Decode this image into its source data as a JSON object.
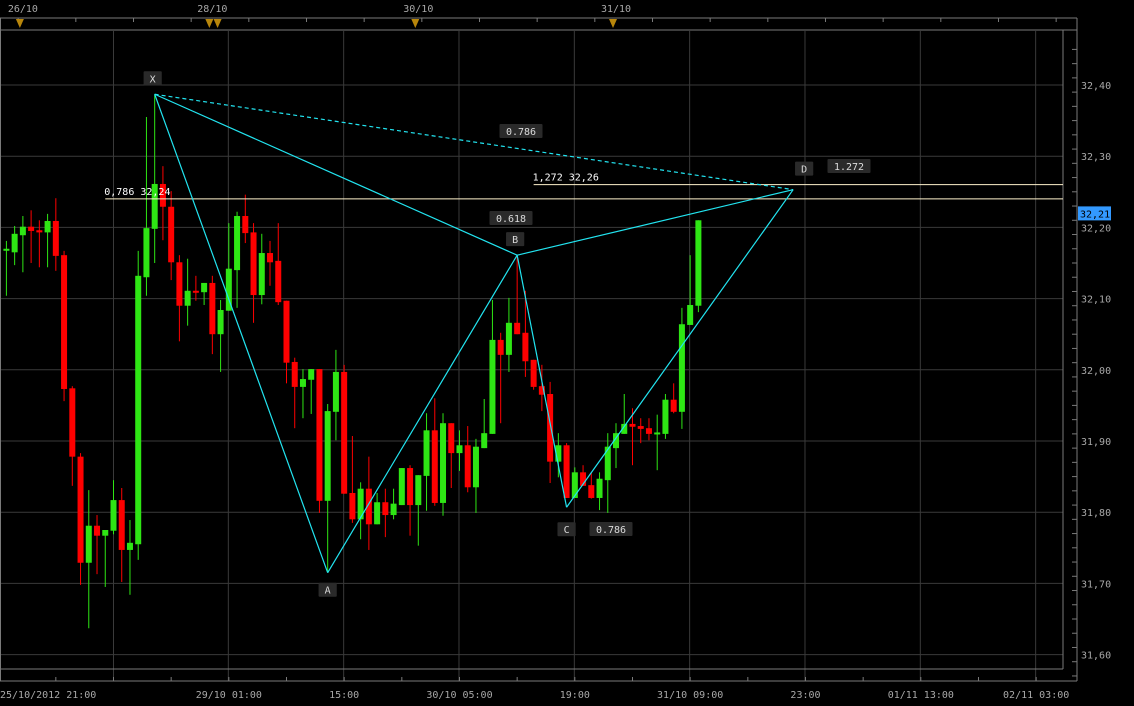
{
  "chart_data": {
    "type": "candlestick",
    "title": "",
    "ylim": [
      31.56,
      32.46
    ],
    "grid": true,
    "colors": {
      "up": "#2ee614",
      "down": "#ff0000",
      "pattern": "#22e4f0",
      "fib_line": "#fff3cc",
      "grid": "#3a3a3a",
      "axis": "#7a7a7a",
      "last_price_bg": "#3399ff"
    },
    "y_ticks": [
      {
        "value": 32.4,
        "label": "32,40"
      },
      {
        "value": 32.3,
        "label": "32,30"
      },
      {
        "value": 32.2,
        "label": "32,20"
      },
      {
        "value": 32.1,
        "label": "32,10"
      },
      {
        "value": 32.0,
        "label": "32,00"
      },
      {
        "value": 31.9,
        "label": "31,90"
      },
      {
        "value": 31.8,
        "label": "31,80"
      },
      {
        "value": 31.7,
        "label": "31,70"
      },
      {
        "value": 31.6,
        "label": "31,60"
      }
    ],
    "x_ticks": [
      {
        "index": -1,
        "label": "25/10/2012 21:00"
      },
      {
        "index": 27,
        "label": "29/10 01:00"
      },
      {
        "index": 41,
        "label": "15:00"
      },
      {
        "index": 55,
        "label": "30/10 05:00"
      },
      {
        "index": 69,
        "label": "19:00"
      },
      {
        "index": 83,
        "label": "31/10 09:00"
      },
      {
        "index": 97,
        "label": "23:00"
      },
      {
        "index": 111,
        "label": "01/11 13:00"
      },
      {
        "index": 125,
        "label": "02/11 03:00"
      }
    ],
    "top_dates": [
      {
        "index": 2,
        "label": "26/10"
      },
      {
        "index": 25,
        "label": "28/10"
      },
      {
        "index": 50,
        "label": "30/10"
      },
      {
        "index": 74,
        "label": "31/10"
      }
    ],
    "event_markers": [
      2,
      25,
      26,
      50,
      74
    ],
    "last_price": {
      "value": 32.21,
      "label": "32,21"
    },
    "candles_ohlc": [
      [
        32.168,
        32.181,
        32.104,
        32.17
      ],
      [
        32.165,
        32.202,
        32.147,
        32.191
      ],
      [
        32.189,
        32.216,
        32.137,
        32.201
      ],
      [
        32.201,
        32.224,
        32.15,
        32.195
      ],
      [
        32.196,
        32.21,
        32.144,
        32.193
      ],
      [
        32.193,
        32.219,
        32.144,
        32.209
      ],
      [
        32.209,
        32.241,
        32.139,
        32.16
      ],
      [
        32.161,
        32.167,
        31.956,
        31.973
      ],
      [
        31.974,
        31.977,
        31.837,
        31.878
      ],
      [
        31.878,
        31.883,
        31.698,
        31.729
      ],
      [
        31.729,
        31.831,
        31.637,
        31.781
      ],
      [
        31.781,
        31.796,
        31.713,
        31.767
      ],
      [
        31.767,
        31.775,
        31.695,
        31.775
      ],
      [
        31.774,
        31.845,
        31.769,
        31.817
      ],
      [
        31.817,
        31.834,
        31.702,
        31.747
      ],
      [
        31.747,
        31.789,
        31.684,
        31.757
      ],
      [
        31.755,
        32.167,
        31.733,
        32.132
      ],
      [
        32.13,
        32.355,
        32.104,
        32.199
      ],
      [
        32.198,
        32.387,
        32.15,
        32.261
      ],
      [
        32.261,
        32.286,
        32.182,
        32.229
      ],
      [
        32.229,
        32.251,
        32.126,
        32.151
      ],
      [
        32.151,
        32.161,
        32.04,
        32.09
      ],
      [
        32.09,
        32.156,
        32.062,
        32.111
      ],
      [
        32.111,
        32.132,
        32.097,
        32.11
      ],
      [
        32.109,
        32.122,
        32.091,
        32.122
      ],
      [
        32.122,
        32.132,
        32.022,
        32.05
      ],
      [
        32.05,
        32.098,
        31.997,
        32.084
      ],
      [
        32.083,
        32.206,
        32.083,
        32.142
      ],
      [
        32.14,
        32.222,
        32.087,
        32.216
      ],
      [
        32.216,
        32.246,
        32.178,
        32.192
      ],
      [
        32.193,
        32.206,
        32.066,
        32.105
      ],
      [
        32.105,
        32.191,
        32.092,
        32.164
      ],
      [
        32.164,
        32.181,
        32.118,
        32.151
      ],
      [
        32.153,
        32.206,
        32.091,
        32.095
      ],
      [
        32.097,
        32.097,
        31.981,
        32.01
      ],
      [
        32.011,
        32.017,
        31.918,
        31.976
      ],
      [
        31.976,
        32.001,
        31.932,
        31.987
      ],
      [
        31.986,
        32.001,
        31.938,
        32.001
      ],
      [
        32.001,
        32.001,
        31.799,
        31.816
      ],
      [
        31.816,
        31.952,
        31.715,
        31.942
      ],
      [
        31.941,
        32.028,
        31.901,
        31.997
      ],
      [
        31.997,
        32.007,
        31.826,
        31.826
      ],
      [
        31.827,
        31.907,
        31.785,
        31.79
      ],
      [
        31.79,
        31.842,
        31.762,
        31.833
      ],
      [
        31.833,
        31.878,
        31.747,
        31.783
      ],
      [
        31.783,
        31.827,
        31.783,
        31.814
      ],
      [
        31.814,
        31.833,
        31.765,
        31.796
      ],
      [
        31.796,
        31.833,
        31.79,
        31.812
      ],
      [
        31.81,
        31.862,
        31.81,
        31.862
      ],
      [
        31.862,
        31.866,
        31.767,
        31.81
      ],
      [
        31.81,
        31.852,
        31.753,
        31.852
      ],
      [
        31.851,
        31.939,
        31.802,
        31.915
      ],
      [
        31.915,
        31.96,
        31.809,
        31.813
      ],
      [
        31.813,
        31.939,
        31.795,
        31.925
      ],
      [
        31.925,
        31.925,
        31.834,
        31.883
      ],
      [
        31.883,
        31.915,
        31.858,
        31.894
      ],
      [
        31.894,
        31.921,
        31.828,
        31.835
      ],
      [
        31.835,
        31.903,
        31.799,
        31.892
      ],
      [
        31.89,
        31.959,
        31.89,
        31.911
      ],
      [
        31.91,
        32.098,
        31.91,
        32.042
      ],
      [
        32.042,
        32.052,
        31.925,
        32.021
      ],
      [
        32.021,
        32.101,
        31.997,
        32.066
      ],
      [
        32.066,
        32.161,
        32.05,
        32.05
      ],
      [
        32.052,
        32.111,
        31.99,
        32.012
      ],
      [
        32.014,
        32.014,
        31.972,
        31.976
      ],
      [
        31.977,
        32.007,
        31.942,
        31.965
      ],
      [
        31.966,
        31.983,
        31.841,
        31.871
      ],
      [
        31.871,
        31.911,
        31.849,
        31.894
      ],
      [
        31.894,
        31.897,
        31.82,
        31.82
      ],
      [
        31.82,
        31.863,
        31.82,
        31.856
      ],
      [
        31.856,
        31.866,
        31.837,
        31.837
      ],
      [
        31.838,
        31.855,
        31.819,
        31.82
      ],
      [
        31.82,
        31.856,
        31.803,
        31.847
      ],
      [
        31.845,
        31.911,
        31.799,
        31.892
      ],
      [
        31.89,
        31.925,
        31.862,
        31.911
      ],
      [
        31.91,
        31.966,
        31.91,
        31.924
      ],
      [
        31.924,
        31.946,
        31.866,
        31.92
      ],
      [
        31.921,
        31.932,
        31.897,
        31.917
      ],
      [
        31.918,
        31.932,
        31.901,
        31.91
      ],
      [
        31.911,
        31.937,
        31.859,
        31.912
      ],
      [
        31.91,
        31.966,
        31.903,
        31.958
      ],
      [
        31.958,
        31.981,
        31.939,
        31.941
      ],
      [
        31.941,
        32.087,
        31.917,
        32.064
      ],
      [
        32.063,
        32.161,
        32.063,
        32.091
      ],
      [
        32.09,
        32.21,
        32.081,
        32.21
      ]
    ],
    "pattern": {
      "points": [
        {
          "name": "X",
          "index": 18,
          "price": 32.387
        },
        {
          "name": "A",
          "index": 39,
          "price": 31.715
        },
        {
          "name": "B",
          "index": 62,
          "price": 32.161
        },
        {
          "name": "C",
          "index": 68,
          "price": 31.807
        },
        {
          "name": "D",
          "index": 95.5,
          "price": 32.253
        }
      ],
      "ratios": {
        "XB": "0.618",
        "AC": "0.786",
        "XD": "0.786",
        "BD": "1.272"
      },
      "levels": [
        {
          "price": 32.24,
          "label": "0,786 32,24",
          "from_index": 12
        },
        {
          "price": 32.26,
          "label": "1,272 32,26",
          "from_index": 64
        }
      ]
    }
  }
}
